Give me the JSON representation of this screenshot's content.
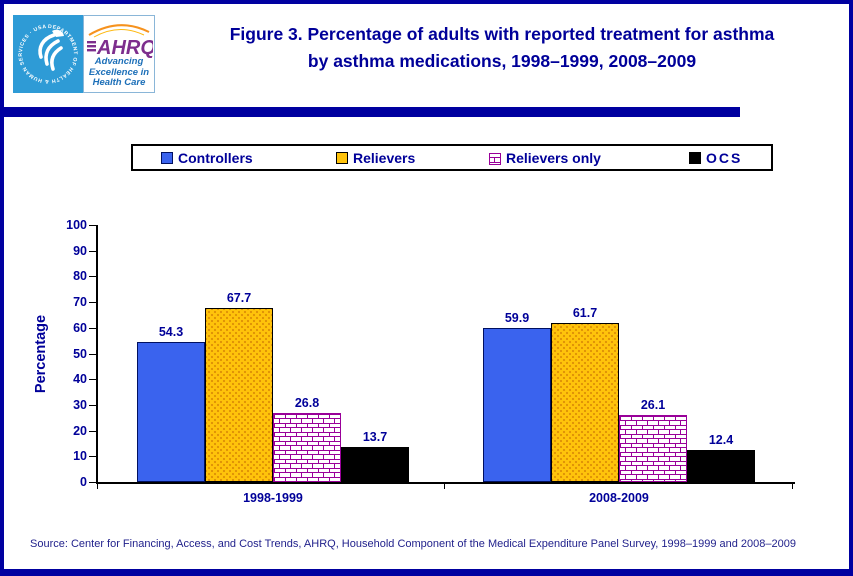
{
  "header": {
    "logo": {
      "hhs_seal_text": "DEPARTMENT OF HEALTH & HUMAN SERVICES · USA",
      "ahrq_acronym": "AHRQ",
      "tagline_lines": [
        "Advancing",
        "Excellence in",
        "Health Care"
      ]
    },
    "title_line1": "Figure 3. Percentage of adults with reported treatment for asthma",
    "title_line2": "by asthma medications, 1998–1999, 2008–2009"
  },
  "chart_data": {
    "type": "bar",
    "categories": [
      "1998-1999",
      "2008-2009"
    ],
    "series": [
      {
        "name": "Controllers",
        "values": [
          54.3,
          59.9
        ],
        "color": "#3A63EE",
        "border": "#001060",
        "pattern": "solid"
      },
      {
        "name": "Relievers",
        "values": [
          67.7,
          61.7
        ],
        "color": "#FFC30B",
        "border": "#000000",
        "pattern": "dots"
      },
      {
        "name": "Relievers only",
        "values": [
          26.8,
          26.1
        ],
        "color": "#990099",
        "border": "#990099",
        "pattern": "brick"
      },
      {
        "name": "OCS",
        "values": [
          13.7,
          12.4
        ],
        "color": "#000000",
        "border": "#000000",
        "pattern": "solid"
      }
    ],
    "title": "",
    "xlabel": "",
    "ylabel": "Percentage",
    "ylim": [
      0,
      100
    ],
    "ytick_step": 10,
    "grid": false,
    "legend_position": "top",
    "data_labels": true
  },
  "footer": {
    "source": "Source: Center for Financing, Access, and Cost Trends, AHRQ, Household Component of the Medical Expenditure Panel Survey,  1998–1999 and 2008–2009"
  },
  "colors": {
    "text_navy": "#000099",
    "panel_navy": "#0000A0",
    "axis_black": "#000000",
    "hhs_blue": "#2E9BD6",
    "ahrq_purple": "#7D2E8D",
    "tagline_blue": "#1C6FB8",
    "arc_orange": "#F6921E"
  }
}
